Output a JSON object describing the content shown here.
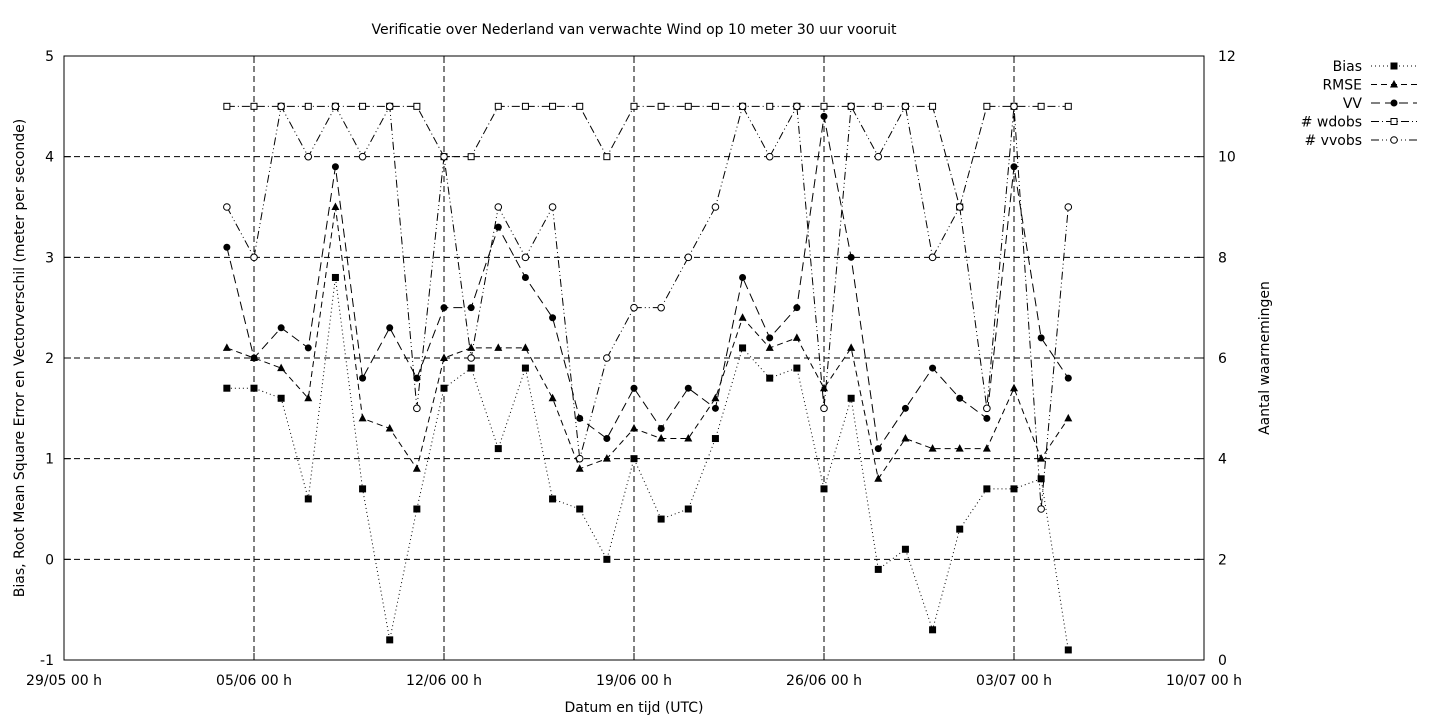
{
  "chart_data": {
    "type": "line",
    "title": "Verificatie over Nederland van verwachte Wind op 10 meter 30 uur vooruit",
    "xlabel": "Datum en tijd (UTC)",
    "ylabel": "Bias, Root Mean Square Error en Vectorverschil (meter per seconde)",
    "y2label": "Aantal waarnemingen",
    "xlim": [
      0,
      42
    ],
    "ylim": [
      -1,
      5
    ],
    "y2lim": [
      0,
      12
    ],
    "grid": true,
    "legend_position": "top-right outside",
    "x_ticks": [
      {
        "x": 0,
        "label": "29/05 00 h"
      },
      {
        "x": 7,
        "label": "05/06 00 h"
      },
      {
        "x": 14,
        "label": "12/06 00 h"
      },
      {
        "x": 21,
        "label": "19/06 00 h"
      },
      {
        "x": 28,
        "label": "26/06 00 h"
      },
      {
        "x": 35,
        "label": "03/07 00 h"
      },
      {
        "x": 42,
        "label": "10/07 00 h"
      }
    ],
    "y_ticks": [
      "-1",
      "0",
      "1",
      "2",
      "3",
      "4",
      "5"
    ],
    "y2_ticks": [
      "0",
      "2",
      "4",
      "6",
      "8",
      "10",
      "12"
    ],
    "x": [
      6,
      7,
      8,
      9,
      10,
      11,
      12,
      13,
      14,
      15,
      16,
      17,
      18,
      19,
      20,
      21,
      22,
      23,
      24,
      25,
      26,
      27,
      28,
      29,
      30,
      31,
      32,
      33,
      34,
      35,
      36,
      37,
      38
    ],
    "series": [
      {
        "name": "Bias",
        "axis": "y1",
        "marker": "filled-square",
        "dash": "dotted",
        "values": [
          1.7,
          1.7,
          1.6,
          0.6,
          2.8,
          0.7,
          -0.8,
          0.5,
          1.7,
          1.9,
          1.1,
          1.9,
          0.6,
          0.5,
          0.0,
          1.0,
          0.4,
          0.5,
          1.2,
          2.1,
          1.8,
          1.9,
          0.7,
          1.6,
          -0.1,
          0.1,
          -0.7,
          0.3,
          0.7,
          0.7,
          0.8,
          -0.9,
          null
        ]
      },
      {
        "name": "RMSE",
        "axis": "y1",
        "marker": "filled-triangle",
        "dash": "dashed",
        "values": [
          2.1,
          2.0,
          1.9,
          1.6,
          3.5,
          1.4,
          1.3,
          0.9,
          2.0,
          2.1,
          2.1,
          2.1,
          1.6,
          0.9,
          1.0,
          1.3,
          1.2,
          1.2,
          1.6,
          2.4,
          2.1,
          2.2,
          1.7,
          2.1,
          0.8,
          1.2,
          1.1,
          1.1,
          1.1,
          1.7,
          1.0,
          1.4,
          null
        ]
      },
      {
        "name": "VV",
        "axis": "y1",
        "marker": "filled-circle",
        "dash": "long-dashed",
        "values": [
          3.1,
          2.0,
          2.3,
          2.1,
          3.9,
          1.8,
          2.3,
          1.8,
          2.5,
          2.5,
          3.3,
          2.8,
          2.4,
          1.4,
          1.2,
          1.7,
          1.3,
          1.7,
          1.5,
          2.8,
          2.2,
          2.5,
          4.4,
          3.0,
          1.1,
          1.5,
          1.9,
          1.6,
          1.4,
          3.9,
          2.2,
          1.8,
          null
        ]
      },
      {
        "name": "# wdobs",
        "axis": "y2",
        "marker": "open-square",
        "dash": "dash-dot",
        "values": [
          11,
          11,
          11,
          11,
          11,
          11,
          11,
          11,
          10,
          10,
          11,
          11,
          11,
          11,
          10,
          11,
          11,
          11,
          11,
          11,
          11,
          11,
          11,
          11,
          11,
          11,
          11,
          9,
          11,
          11,
          11,
          11,
          null
        ]
      },
      {
        "name": "# vvobs",
        "axis": "y2",
        "marker": "open-circle",
        "dash": "dash-dot-dot",
        "values": [
          9,
          8,
          11,
          10,
          11,
          10,
          11,
          5,
          10,
          6,
          9,
          8,
          9,
          4,
          6,
          7,
          7,
          8,
          9,
          11,
          10,
          11,
          5,
          11,
          10,
          11,
          8,
          9,
          5,
          11,
          3,
          9,
          null
        ]
      }
    ]
  }
}
